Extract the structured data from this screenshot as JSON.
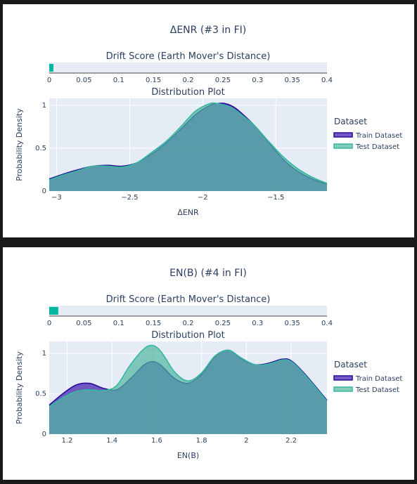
{
  "chart_data": [
    {
      "type": "area",
      "title": "ΔENR (#3 in FI)",
      "drift": {
        "title": "Drift Score (Earth Mover's Distance)",
        "value": 0.006,
        "xlim": [
          0,
          0.4
        ],
        "ticks": [
          "0",
          "0.05",
          "0.1",
          "0.15",
          "0.2",
          "0.25",
          "0.3",
          "0.35",
          "0.4"
        ],
        "bar_color": "#00b5a1"
      },
      "distribution": {
        "title": "Distribution Plot",
        "xlabel": "ΔENR",
        "ylabel": "Probability Density",
        "xlim": [
          -3.05,
          -1.15
        ],
        "ylim": [
          0,
          1.08
        ],
        "x_ticks": [
          -3,
          -2.5,
          -2,
          -1.5
        ],
        "x_tick_labels": [
          "−3",
          "−2.5",
          "−2",
          "−1.5"
        ],
        "y_ticks": [
          0,
          0.5,
          1
        ],
        "y_tick_labels": [
          "0",
          "0.5",
          "1"
        ],
        "grid": true,
        "series": [
          {
            "name": "Train Dataset",
            "color": "#2a0a9a",
            "fill": "rgba(84,54,184,0.82)",
            "x": [
              -3.05,
              -2.95,
              -2.85,
              -2.75,
              -2.65,
              -2.55,
              -2.45,
              -2.35,
              -2.25,
              -2.15,
              -2.05,
              -1.95,
              -1.9,
              -1.85,
              -1.8,
              -1.75,
              -1.65,
              -1.55,
              -1.45,
              -1.35,
              -1.25,
              -1.15
            ],
            "values": [
              0.14,
              0.2,
              0.25,
              0.29,
              0.3,
              0.29,
              0.33,
              0.43,
              0.56,
              0.72,
              0.89,
              1.0,
              1.02,
              1.02,
              0.99,
              0.93,
              0.77,
              0.57,
              0.37,
              0.23,
              0.14,
              0.08
            ]
          },
          {
            "name": "Test Dataset",
            "color": "#35b89f",
            "fill": "rgba(80,184,160,0.7)",
            "x": [
              -3.05,
              -2.95,
              -2.85,
              -2.75,
              -2.65,
              -2.55,
              -2.45,
              -2.35,
              -2.25,
              -2.15,
              -2.05,
              -1.95,
              -1.9,
              -1.85,
              -1.8,
              -1.75,
              -1.65,
              -1.55,
              -1.45,
              -1.35,
              -1.25,
              -1.15
            ],
            "values": [
              0.13,
              0.19,
              0.24,
              0.29,
              0.29,
              0.28,
              0.33,
              0.45,
              0.58,
              0.75,
              0.93,
              1.02,
              1.02,
              1.0,
              0.97,
              0.91,
              0.77,
              0.58,
              0.4,
              0.26,
              0.16,
              0.09
            ]
          }
        ]
      },
      "legend": {
        "title": "Dataset",
        "position": "right"
      }
    },
    {
      "type": "area",
      "title": "EN(B) (#4 in FI)",
      "drift": {
        "title": "Drift Score (Earth Mover's Distance)",
        "value": 0.013,
        "xlim": [
          0,
          0.4
        ],
        "ticks": [
          "0",
          "0.05",
          "0.1",
          "0.15",
          "0.2",
          "0.25",
          "0.3",
          "0.35",
          "0.4"
        ],
        "bar_color": "#00b5a1"
      },
      "distribution": {
        "title": "Distribution Plot",
        "xlabel": "EN(B)",
        "ylabel": "Probability Density",
        "xlim": [
          1.12,
          2.36
        ],
        "ylim": [
          0,
          1.15
        ],
        "x_ticks": [
          1.2,
          1.4,
          1.6,
          1.8,
          2,
          2.2
        ],
        "x_tick_labels": [
          "1.2",
          "1.4",
          "1.6",
          "1.8",
          "2",
          "2.2"
        ],
        "y_ticks": [
          0,
          0.5,
          1
        ],
        "y_tick_labels": [
          "0",
          "0.5",
          "1"
        ],
        "grid": true,
        "series": [
          {
            "name": "Train Dataset",
            "color": "#2a0a9a",
            "fill": "rgba(84,54,184,0.82)",
            "x": [
              1.12,
              1.18,
              1.24,
              1.3,
              1.36,
              1.42,
              1.48,
              1.54,
              1.58,
              1.62,
              1.68,
              1.74,
              1.8,
              1.86,
              1.92,
              1.98,
              2.04,
              2.1,
              2.16,
              2.2,
              2.26,
              2.36
            ],
            "values": [
              0.36,
              0.5,
              0.61,
              0.63,
              0.57,
              0.55,
              0.68,
              0.85,
              0.9,
              0.85,
              0.69,
              0.63,
              0.74,
              0.96,
              1.04,
              0.93,
              0.86,
              0.88,
              0.93,
              0.91,
              0.75,
              0.42
            ]
          },
          {
            "name": "Test Dataset",
            "color": "#35b89f",
            "fill": "rgba(80,184,160,0.7)",
            "x": [
              1.12,
              1.18,
              1.24,
              1.3,
              1.36,
              1.42,
              1.48,
              1.54,
              1.58,
              1.62,
              1.68,
              1.74,
              1.8,
              1.86,
              1.92,
              1.98,
              2.04,
              2.1,
              2.16,
              2.2,
              2.26,
              2.36
            ],
            "values": [
              0.34,
              0.45,
              0.53,
              0.55,
              0.54,
              0.6,
              0.85,
              1.05,
              1.1,
              1.02,
              0.77,
              0.66,
              0.76,
              0.97,
              1.04,
              0.94,
              0.86,
              0.87,
              0.92,
              0.9,
              0.74,
              0.41
            ]
          }
        ]
      },
      "legend": {
        "title": "Dataset",
        "position": "right"
      }
    }
  ]
}
